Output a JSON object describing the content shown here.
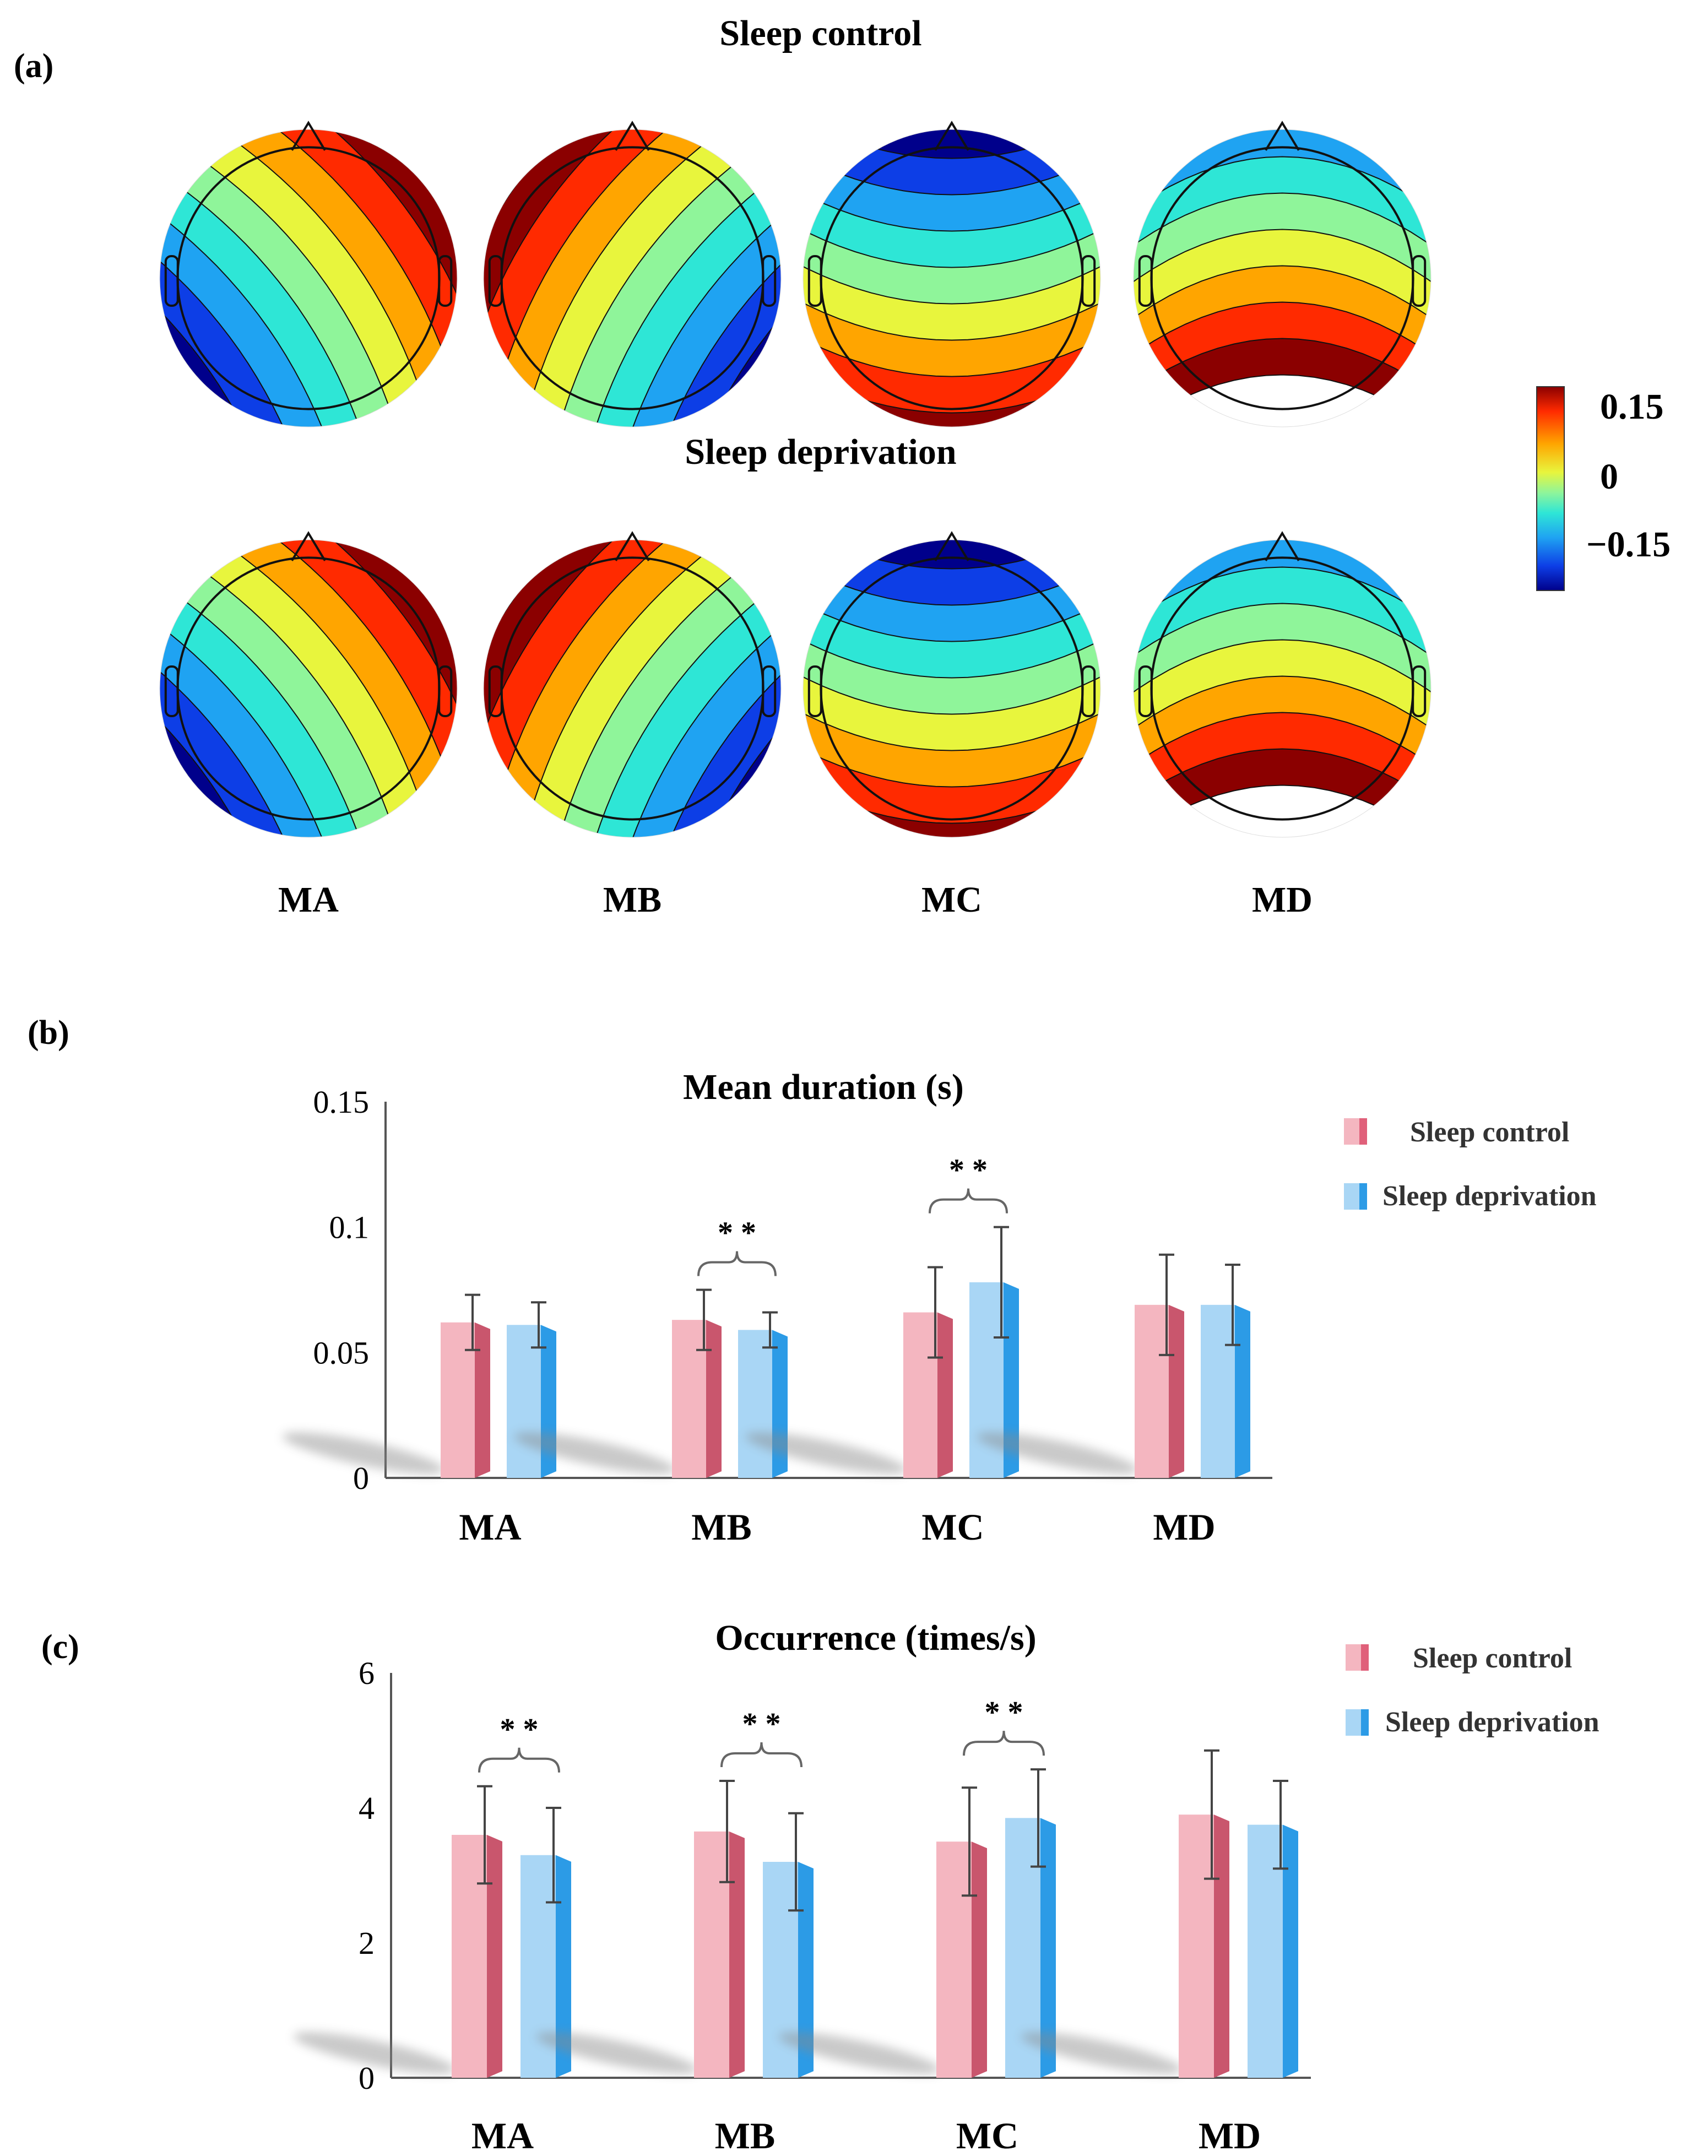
{
  "panel_a": {
    "label": "(a)",
    "row_titles": [
      "Sleep control",
      "Sleep deprivation"
    ],
    "map_labels": [
      "MA",
      "MB",
      "MC",
      "MD"
    ],
    "colorbar": {
      "max_label": "0.15",
      "mid_label": "0",
      "min_label": "−0.15",
      "colors": [
        "#8b0000",
        "#ff2a00",
        "#ffa500",
        "#e8f53d",
        "#8ff59a",
        "#2ee6d6",
        "#1fa3f2",
        "#0d3ee6",
        "#00008b"
      ]
    }
  },
  "legend": {
    "series_names": [
      "Sleep control",
      "Sleep deprivation"
    ]
  },
  "colors": {
    "control_front": "#f4b6c0",
    "control_side": "#c9566d",
    "deprivation_front": "#a9d6f5",
    "deprivation_side": "#2c9be6"
  },
  "chart_data": [
    {
      "type": "bar",
      "panel_label": "(b)",
      "title": "Mean duration (s)",
      "categories": [
        "MA",
        "MB",
        "MC",
        "MD"
      ],
      "ylim": [
        0,
        0.15
      ],
      "y_ticks": [
        0,
        0.05,
        0.1,
        0.15
      ],
      "y_tick_labels": [
        "0",
        "0.05",
        "0.1",
        "0.15"
      ],
      "series": [
        {
          "name": "Sleep control",
          "values": [
            0.062,
            0.063,
            0.066,
            0.069
          ],
          "errors": [
            0.011,
            0.012,
            0.018,
            0.02
          ]
        },
        {
          "name": "Sleep deprivation",
          "values": [
            0.061,
            0.059,
            0.078,
            0.069
          ],
          "errors": [
            0.009,
            0.007,
            0.022,
            0.016
          ]
        }
      ],
      "significance": [
        {
          "category": "MB",
          "text": "* *"
        },
        {
          "category": "MC",
          "text": "* *"
        }
      ]
    },
    {
      "type": "bar",
      "panel_label": "(c)",
      "title": "Occurrence (times/s)",
      "categories": [
        "MA",
        "MB",
        "MC",
        "MD"
      ],
      "ylim": [
        0,
        6
      ],
      "y_ticks": [
        0,
        2,
        4,
        6
      ],
      "y_tick_labels": [
        "0",
        "2",
        "4",
        "6"
      ],
      "series": [
        {
          "name": "Sleep control",
          "values": [
            3.6,
            3.65,
            3.5,
            3.9
          ],
          "errors": [
            0.72,
            0.75,
            0.8,
            0.95
          ]
        },
        {
          "name": "Sleep deprivation",
          "values": [
            3.3,
            3.2,
            3.85,
            3.75
          ],
          "errors": [
            0.7,
            0.72,
            0.72,
            0.65
          ]
        }
      ],
      "significance": [
        {
          "category": "MA",
          "text": "* *"
        },
        {
          "category": "MB",
          "text": "* *"
        },
        {
          "category": "MC",
          "text": "* *"
        }
      ]
    }
  ]
}
